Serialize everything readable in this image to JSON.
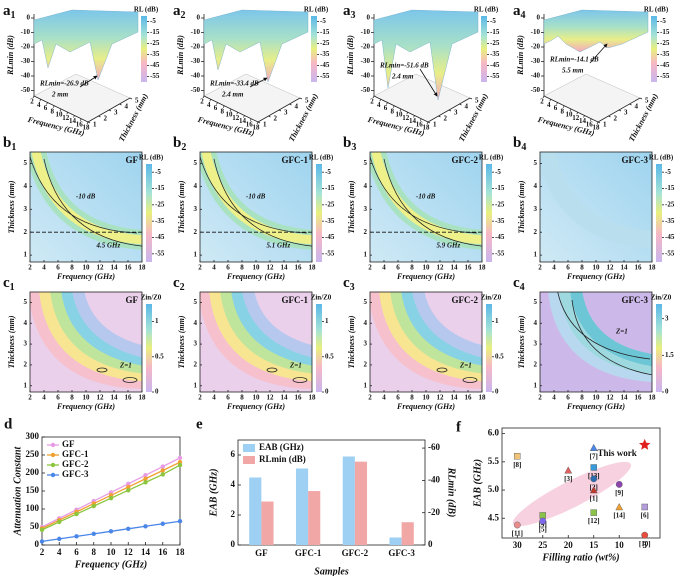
{
  "figure": {
    "a_axes": {
      "z_label": "RLmin (dB)",
      "x_label": "Frequency (GHz)",
      "y_label": "Thickness (mm)",
      "colorbar_title": "RL (dB)",
      "colorbar_ticks": [
        -5,
        -15,
        -25,
        -35,
        -45,
        -55
      ],
      "colorbar_lim": [
        0,
        -60
      ],
      "zticks": [
        0,
        -10,
        -20,
        -30,
        -40,
        -50
      ],
      "xticks": [
        2,
        4,
        6,
        8,
        10,
        12,
        14,
        16,
        18
      ],
      "yticks": [
        1,
        2,
        3,
        4,
        5
      ]
    },
    "a_panels": [
      {
        "label": "a",
        "index": "1",
        "rl": "RLmin=-26.9 dB",
        "thickness": "2 mm"
      },
      {
        "label": "a",
        "index": "2",
        "rl": "RLmin=-33.4 dB",
        "thickness": "2.4 mm"
      },
      {
        "label": "a",
        "index": "3",
        "rl": "RLmin=-51.6 dB",
        "thickness": "2.4 mm"
      },
      {
        "label": "a",
        "index": "4",
        "rl": "RLmin=-14.1 dB",
        "thickness": "5.5 mm"
      }
    ],
    "b_axes": {
      "x_label": "Frequency (GHz)",
      "y_label": "Thickness (mm)",
      "colorbar_title": "RL (dB)",
      "colorbar_ticks": [
        -5,
        -15,
        -25,
        -35,
        -45,
        -55
      ],
      "colorbar_lim": [
        0,
        -60
      ],
      "xticks": [
        2,
        4,
        6,
        8,
        10,
        12,
        14,
        16,
        18
      ],
      "xlim": [
        2,
        18
      ],
      "yticks": [
        1,
        2,
        3,
        4,
        5
      ],
      "ylim": [
        0.7,
        5.5
      ]
    },
    "b_panels": [
      {
        "label": "b",
        "index": "1",
        "title": "GF",
        "contour": "-10 dB",
        "band": "4.5 GHz"
      },
      {
        "label": "b",
        "index": "2",
        "title": "GFC-1",
        "contour": "-10 dB",
        "band": "5.1 GHz"
      },
      {
        "label": "b",
        "index": "3",
        "title": "GFC-2",
        "contour": "-10 dB",
        "band": "5.9 GHz"
      },
      {
        "label": "b",
        "index": "4",
        "title": "GFC-3"
      }
    ],
    "c_axes": {
      "x_label": "Frequency (GHz)",
      "y_label": "Thickness (mm)",
      "colorbar_title": "Zin/Z0",
      "xticks": [
        2,
        4,
        6,
        8,
        10,
        12,
        14,
        16,
        18
      ],
      "xlim": [
        2,
        18
      ],
      "yticks": [
        1,
        2,
        3,
        4,
        5
      ],
      "ylim": [
        0.7,
        5.5
      ]
    },
    "c_panels": [
      {
        "label": "c",
        "index": "1",
        "title": "GF",
        "contour": "Z=1",
        "colorbar_ticks": [
          0,
          0.5,
          1
        ],
        "colorbar_lim": [
          0,
          1.25
        ]
      },
      {
        "label": "c",
        "index": "2",
        "title": "GFC-1",
        "contour": "Z=1",
        "colorbar_ticks": [
          0,
          0.5,
          1
        ],
        "colorbar_lim": [
          0,
          1.25
        ]
      },
      {
        "label": "c",
        "index": "3",
        "title": "GFC-2",
        "contour": "Z=1",
        "colorbar_ticks": [
          0,
          0.5,
          1
        ],
        "colorbar_lim": [
          0,
          1.25
        ]
      },
      {
        "label": "c",
        "index": "4",
        "title": "GFC-3",
        "contour": "Z=1",
        "colorbar_ticks": [
          0,
          1.5,
          3
        ],
        "colorbar_lim": [
          0,
          3.6
        ]
      }
    ]
  },
  "chart_data": [
    {
      "type": "line",
      "label": "d",
      "x_label": "Frequency (GHz)",
      "y_label": "Attenuation Constant",
      "x": [
        2,
        4,
        6,
        8,
        10,
        12,
        14,
        16,
        18
      ],
      "xlim": [
        2,
        18
      ],
      "xticks": [
        2,
        4,
        6,
        8,
        10,
        12,
        14,
        16,
        18
      ],
      "ylim": [
        0,
        300
      ],
      "yticks": [
        0,
        50,
        100,
        150,
        200,
        250,
        300
      ],
      "series": [
        {
          "name": "GF",
          "color": "#e79be6",
          "values": [
            50,
            74,
            98,
            122,
            146,
            170,
            194,
            218,
            242
          ]
        },
        {
          "name": "GFC-1",
          "color": "#f0a030",
          "values": [
            46,
            69,
            92,
            115,
            138,
            161,
            184,
            207,
            230
          ]
        },
        {
          "name": "GFC-2",
          "color": "#8cc63e",
          "values": [
            42,
            64,
            86,
            108,
            130,
            152,
            174,
            196,
            222
          ]
        },
        {
          "name": "GFC-3",
          "color": "#4a86e8",
          "values": [
            10,
            17,
            24,
            31,
            38,
            45,
            52,
            59,
            66
          ]
        }
      ]
    },
    {
      "type": "bar",
      "label": "e",
      "x_label": "Samples",
      "y_label": "EAB (GHz)",
      "y2_label": "RLmin (dB)",
      "categories": [
        "GF",
        "GFC-1",
        "GFC-2",
        "GFC-3"
      ],
      "ylim": [
        0,
        7
      ],
      "yticks": [
        0,
        2,
        4,
        6
      ],
      "y2lim": [
        0,
        -65
      ],
      "y2ticks": [
        0,
        -20,
        -40,
        -60
      ],
      "series": [
        {
          "name": "EAB (GHz)",
          "color": "#9dd0f2",
          "values": [
            4.5,
            5.1,
            5.9,
            0.5
          ]
        },
        {
          "name": "RLmin (dB)",
          "color": "#f2a7a7",
          "axis": "y2",
          "values": [
            -26.9,
            -33.4,
            -51.6,
            -14.1
          ]
        }
      ]
    },
    {
      "type": "scatter",
      "label": "f",
      "x_label": "Filling ratio (wt%)",
      "y_label": "EAB (GHz)",
      "xlim": [
        33,
        2
      ],
      "xticks": [
        30,
        25,
        20,
        15,
        10,
        5
      ],
      "ylim": [
        4.15,
        6.1
      ],
      "yticks": [
        4.5,
        {
          "value": 5,
          "label": "5.0"
        },
        5.5,
        {
          "value": 6,
          "label": "6.0"
        }
      ],
      "x": [
        30,
        30,
        20,
        25,
        25,
        15,
        15,
        15,
        15,
        15,
        10,
        10,
        5,
        5
      ],
      "values": [
        5.6,
        4.38,
        5.35,
        4.55,
        4.45,
        5.75,
        5.4,
        5.2,
        5.0,
        4.6,
        5.1,
        4.7,
        4.7,
        4.2
      ],
      "point_labels": [
        "[8]",
        "[11]",
        "[3]",
        "[4]",
        "[5]",
        "[7]",
        "[13]",
        "[2]",
        "[1]",
        "[12]",
        "[9]",
        "[14]",
        "[6]",
        "[10]"
      ],
      "colors": [
        "#f0c27a",
        "#e88c8c",
        "#e06060",
        "#8bc34a",
        "#7b68ee",
        "#4a86e8",
        "#3a9ad9",
        "#2b6cb0",
        "#c0392b",
        "#8bc34a",
        "#8e44ad",
        "#f0a030",
        "#b39ddb",
        "#e74c3c"
      ],
      "highlight": {
        "label": "This work",
        "x": 5,
        "value": 5.8,
        "color": "#e0201c"
      }
    }
  ]
}
